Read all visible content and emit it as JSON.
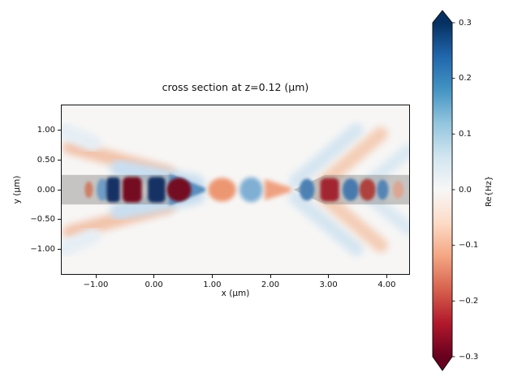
{
  "chart_data": {
    "type": "heatmap",
    "title": "cross section at z=0.12 (μm)",
    "xlabel": "x (μm)",
    "ylabel": "y (μm)",
    "xlim": [
      -1.6,
      4.4
    ],
    "ylim": [
      -1.435,
      1.435
    ],
    "background_color": "#f7f6f5",
    "xticks": {
      "values": [
        -1,
        0,
        1,
        2,
        3,
        4
      ],
      "labels": [
        "−1.00",
        "0.00",
        "1.00",
        "2.00",
        "3.00",
        "4.00"
      ]
    },
    "yticks": {
      "values": [
        1,
        0.5,
        0,
        -0.5,
        -1
      ],
      "labels": [
        "1.00",
        "0.50",
        "0.00",
        "−0.50",
        "−1.00"
      ]
    },
    "colorbar": {
      "label": "Re{Hz}",
      "vmin": -0.3,
      "vmax": 0.3,
      "extend": "both",
      "colormap": "RdBu",
      "ticks": {
        "values": [
          0.3,
          0.2,
          0.1,
          0.0,
          -0.1,
          -0.2,
          -0.3
        ],
        "labels": [
          "0.3",
          "0.2",
          "0.1",
          "0.0",
          "−0.1",
          "−0.2",
          "−0.3"
        ]
      },
      "gradient_stops_top_to_bottom": [
        "#053061",
        "#2166ac",
        "#4393c3",
        "#92c5de",
        "#d1e5f0",
        "#f7f7f7",
        "#fddbc7",
        "#f4a582",
        "#d6604d",
        "#b2182b",
        "#67001f"
      ],
      "over_color": "#053061",
      "under_color": "#67001f"
    },
    "structure": {
      "description": "waveguide taper pair overlay, half-width 0.25 um, left tip x=0.84, right tip x=2.40",
      "color": "rgba(117,115,113,0.38)",
      "shapes": [
        {
          "type": "poly",
          "pts": [
            [
              -1.8,
              0.25
            ],
            [
              0.34,
              0.25
            ],
            [
              0.84,
              0
            ],
            [
              0.34,
              -0.25
            ],
            [
              -1.8,
              -0.25
            ]
          ]
        },
        {
          "type": "poly",
          "pts": [
            [
              2.4,
              0
            ],
            [
              2.94,
              0.25
            ],
            [
              4.6,
              0.25
            ],
            [
              4.6,
              -0.25
            ],
            [
              2.94,
              -0.25
            ]
          ]
        }
      ]
    },
    "field": {
      "quantity": "Re{Hz}",
      "radiation": [
        {
          "x1": -1.45,
          "y1": 0.72,
          "x2": 0.25,
          "y2": 0.28,
          "thickness": 0.24,
          "color": "#f2c3aa",
          "value": -0.05,
          "mirror": true
        },
        {
          "x1": -1.58,
          "y1": 1.0,
          "x2": -1.05,
          "y2": 0.78,
          "thickness": 0.28,
          "color": "#e6eef5",
          "value": 0.03,
          "mirror": true
        },
        {
          "x1": -0.6,
          "y1": 0.36,
          "x2": 0.72,
          "y2": 0.1,
          "thickness": 0.3,
          "color": "#c9def0",
          "value": 0.07,
          "mirror": true
        },
        {
          "x1": 2.44,
          "y1": 0.14,
          "x2": 3.48,
          "y2": 1.0,
          "thickness": 0.24,
          "color": "#d5e5f1",
          "value": 0.05,
          "mirror": true
        },
        {
          "x1": 2.92,
          "y1": 0.12,
          "x2": 3.9,
          "y2": 0.94,
          "thickness": 0.24,
          "color": "#f4cdb6",
          "value": -0.06,
          "mirror": true
        },
        {
          "x1": 3.62,
          "y1": 0.05,
          "x2": 4.39,
          "y2": 0.67,
          "thickness": 0.22,
          "color": "#dbe8f2",
          "value": 0.04,
          "mirror": true
        }
      ],
      "gap_field": [
        {
          "shape": "ellipse",
          "x": 1.17,
          "y": 0,
          "rx": 0.24,
          "ry": 0.2,
          "color": "#ec9672",
          "value": -0.12
        },
        {
          "shape": "ellipse",
          "x": 1.67,
          "y": 0,
          "rx": 0.2,
          "ry": 0.21,
          "color": "#7fafd3",
          "value": 0.1
        },
        {
          "shape": "wedge",
          "x1": 1.9,
          "h1": 0.18,
          "x2": 2.36,
          "h2": 0.03,
          "color": "#efa080",
          "value": -0.1
        }
      ],
      "guided_field": [
        {
          "shape": "wedge",
          "x1": 0.26,
          "h1": 0.27,
          "x2": 0.88,
          "h2": 0.03,
          "color": "#5a8fc0",
          "value": 0.12
        },
        {
          "shape": "ellipse",
          "x": -1.12,
          "y": 0,
          "rx": 0.07,
          "ry": 0.14,
          "color": "#cd8066",
          "value": -0.08
        },
        {
          "shape": "ellipse",
          "x": -0.885,
          "y": 0,
          "rx": 0.1,
          "ry": 0.19,
          "color": "#6e9cc4",
          "value": 0.15
        },
        {
          "shape": "rect",
          "x": -0.7,
          "y": 0,
          "rx": 0.115,
          "ry": 0.21,
          "color": "#123165",
          "value": 0.3
        },
        {
          "shape": "rect",
          "x": -0.375,
          "y": 0,
          "rx": 0.165,
          "ry": 0.215,
          "color": "#740e20",
          "value": -0.3
        },
        {
          "shape": "rect",
          "x": 0.045,
          "y": 0,
          "rx": 0.15,
          "ry": 0.215,
          "color": "#123165",
          "value": 0.3
        },
        {
          "shape": "ellipse",
          "x": 0.43,
          "y": 0,
          "rx": 0.21,
          "ry": 0.2,
          "color": "#740e20",
          "value": -0.3
        },
        {
          "shape": "ellipse",
          "x": 2.63,
          "y": 0,
          "rx": 0.13,
          "ry": 0.185,
          "color": "#4e81b4",
          "value": 0.15
        },
        {
          "shape": "rect",
          "x": 3.02,
          "y": 0,
          "rx": 0.16,
          "ry": 0.195,
          "color": "#a22730",
          "value": -0.25
        },
        {
          "shape": "ellipse",
          "x": 3.38,
          "y": 0,
          "rx": 0.14,
          "ry": 0.19,
          "color": "#4a7aad",
          "value": 0.2
        },
        {
          "shape": "ellipse",
          "x": 3.67,
          "y": 0,
          "rx": 0.14,
          "ry": 0.185,
          "color": "#ae423c",
          "value": -0.2
        },
        {
          "shape": "ellipse",
          "x": 3.93,
          "y": 0,
          "rx": 0.1,
          "ry": 0.17,
          "color": "#5585b6",
          "value": 0.15
        },
        {
          "shape": "ellipse",
          "x": 4.2,
          "y": 0,
          "rx": 0.09,
          "ry": 0.15,
          "color": "#dca693",
          "value": -0.06
        }
      ]
    }
  }
}
